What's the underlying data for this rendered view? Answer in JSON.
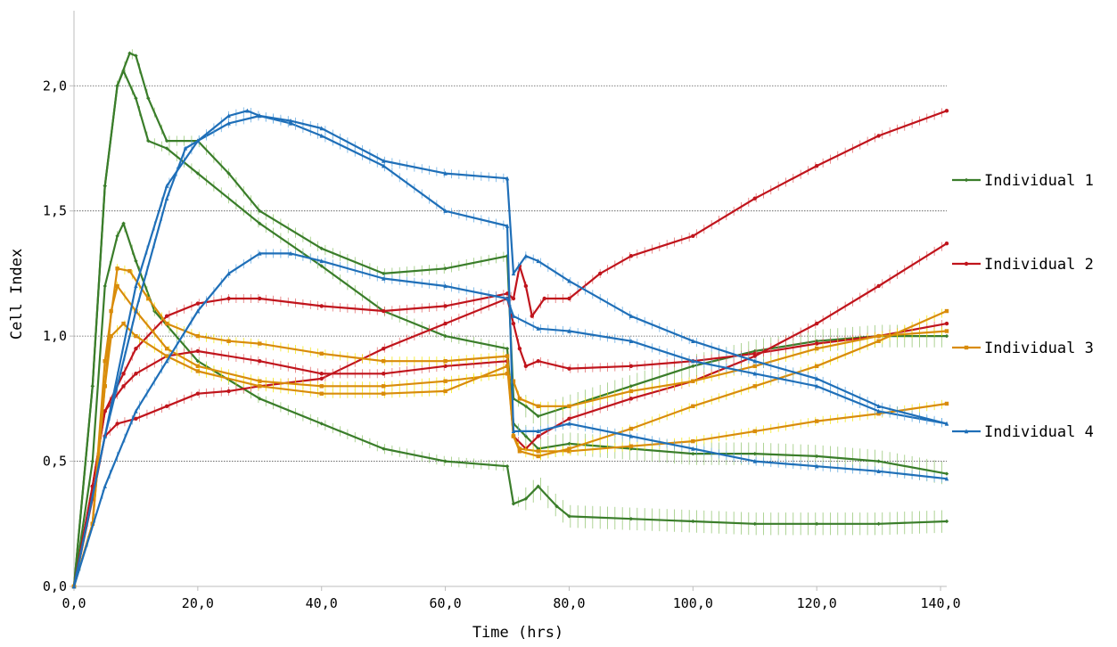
{
  "chart_data": {
    "type": "line",
    "xlabel": "Time (hrs)",
    "ylabel": "Cell Index",
    "xlim": [
      0,
      141
    ],
    "ylim": [
      0,
      2.3
    ],
    "x_ticks": [
      0,
      20,
      40,
      60,
      80,
      100,
      120,
      140
    ],
    "x_tick_labels": [
      "0,0",
      "20,0",
      "40,0",
      "60,0",
      "80,0",
      "100,0",
      "120,0",
      "140,0"
    ],
    "y_ticks": [
      0,
      0.5,
      1.0,
      1.5,
      2.0
    ],
    "y_tick_labels": [
      "0,0",
      "0,5",
      "1,0",
      "1,5",
      "2,0"
    ],
    "horizontal_gridlines": true,
    "legend_position": "right",
    "error_bars": true,
    "series": [
      {
        "name": "Individual 1",
        "group": "Individual 1",
        "color": "#3a7d2a",
        "error_color": "#8dc26a",
        "marker": "diamond",
        "points": [
          [
            0,
            0
          ],
          [
            3,
            0.5
          ],
          [
            5,
            1.2
          ],
          [
            7,
            1.4
          ],
          [
            8,
            1.45
          ],
          [
            10,
            1.3
          ],
          [
            13,
            1.1
          ],
          [
            20,
            0.9
          ],
          [
            30,
            0.75
          ],
          [
            40,
            0.65
          ],
          [
            50,
            0.55
          ],
          [
            60,
            0.5
          ],
          [
            70,
            0.48
          ],
          [
            71,
            0.33
          ],
          [
            73,
            0.35
          ],
          [
            75,
            0.4
          ],
          [
            78,
            0.32
          ],
          [
            80,
            0.28
          ],
          [
            90,
            0.27
          ],
          [
            100,
            0.26
          ],
          [
            110,
            0.25
          ],
          [
            120,
            0.25
          ],
          [
            130,
            0.25
          ],
          [
            141,
            0.26
          ]
        ]
      },
      {
        "name": "",
        "group": "Individual 1",
        "color": "#3a7d2a",
        "error_color": "#8dc26a",
        "marker": "diamond",
        "points": [
          [
            0,
            0
          ],
          [
            3,
            0.8
          ],
          [
            5,
            1.6
          ],
          [
            7,
            2.0
          ],
          [
            8,
            2.06
          ],
          [
            10,
            1.95
          ],
          [
            12,
            1.78
          ],
          [
            15,
            1.75
          ],
          [
            20,
            1.65
          ],
          [
            30,
            1.45
          ],
          [
            40,
            1.28
          ],
          [
            50,
            1.1
          ],
          [
            60,
            1.0
          ],
          [
            70,
            0.95
          ],
          [
            71,
            0.65
          ],
          [
            73,
            0.6
          ],
          [
            75,
            0.55
          ],
          [
            80,
            0.57
          ],
          [
            90,
            0.55
          ],
          [
            100,
            0.53
          ],
          [
            110,
            0.53
          ],
          [
            120,
            0.52
          ],
          [
            130,
            0.5
          ],
          [
            141,
            0.45
          ]
        ]
      },
      {
        "name": "",
        "group": "Individual 1",
        "color": "#3a7d2a",
        "error_color": "#8dc26a",
        "marker": "diamond",
        "points": [
          [
            0,
            0
          ],
          [
            3,
            0.8
          ],
          [
            5,
            1.6
          ],
          [
            7,
            2.0
          ],
          [
            9,
            2.13
          ],
          [
            10,
            2.12
          ],
          [
            12,
            1.95
          ],
          [
            15,
            1.78
          ],
          [
            20,
            1.78
          ],
          [
            25,
            1.65
          ],
          [
            30,
            1.5
          ],
          [
            40,
            1.35
          ],
          [
            50,
            1.25
          ],
          [
            60,
            1.27
          ],
          [
            70,
            1.32
          ],
          [
            71,
            0.75
          ],
          [
            73,
            0.72
          ],
          [
            75,
            0.68
          ],
          [
            80,
            0.72
          ],
          [
            90,
            0.8
          ],
          [
            100,
            0.88
          ],
          [
            110,
            0.94
          ],
          [
            120,
            0.98
          ],
          [
            130,
            1.0
          ],
          [
            141,
            1.0
          ]
        ]
      },
      {
        "name": "Individual 2",
        "group": "Individual 2",
        "color": "#c0141c",
        "error_color": "#e06060",
        "marker": "circle",
        "points": [
          [
            0,
            0
          ],
          [
            3,
            0.35
          ],
          [
            5,
            0.6
          ],
          [
            7,
            0.65
          ],
          [
            10,
            0.67
          ],
          [
            15,
            0.72
          ],
          [
            20,
            0.77
          ],
          [
            25,
            0.78
          ],
          [
            30,
            0.8
          ],
          [
            40,
            0.83
          ],
          [
            50,
            0.95
          ],
          [
            60,
            1.05
          ],
          [
            70,
            1.15
          ],
          [
            71,
            1.05
          ],
          [
            72,
            0.95
          ],
          [
            73,
            0.88
          ],
          [
            75,
            0.9
          ],
          [
            80,
            0.87
          ],
          [
            90,
            0.88
          ],
          [
            100,
            0.9
          ],
          [
            110,
            0.93
          ],
          [
            120,
            0.97
          ],
          [
            130,
            1.0
          ],
          [
            141,
            1.05
          ]
        ]
      },
      {
        "name": "",
        "group": "Individual 2",
        "color": "#c0141c",
        "error_color": "#e06060",
        "marker": "circle",
        "points": [
          [
            0,
            0
          ],
          [
            3,
            0.4
          ],
          [
            5,
            0.7
          ],
          [
            8,
            0.8
          ],
          [
            10,
            0.85
          ],
          [
            15,
            0.92
          ],
          [
            20,
            0.94
          ],
          [
            30,
            0.9
          ],
          [
            40,
            0.85
          ],
          [
            50,
            0.85
          ],
          [
            60,
            0.88
          ],
          [
            70,
            0.9
          ],
          [
            71,
            0.6
          ],
          [
            73,
            0.55
          ],
          [
            75,
            0.6
          ],
          [
            80,
            0.67
          ],
          [
            90,
            0.75
          ],
          [
            100,
            0.82
          ],
          [
            110,
            0.92
          ],
          [
            120,
            1.05
          ],
          [
            130,
            1.2
          ],
          [
            141,
            1.37
          ]
        ]
      },
      {
        "name": "",
        "group": "Individual 2",
        "color": "#c0141c",
        "error_color": "#e06060",
        "marker": "circle",
        "points": [
          [
            0,
            0
          ],
          [
            3,
            0.4
          ],
          [
            5,
            0.7
          ],
          [
            8,
            0.85
          ],
          [
            10,
            0.95
          ],
          [
            15,
            1.08
          ],
          [
            20,
            1.13
          ],
          [
            25,
            1.15
          ],
          [
            30,
            1.15
          ],
          [
            40,
            1.12
          ],
          [
            50,
            1.1
          ],
          [
            60,
            1.12
          ],
          [
            70,
            1.17
          ],
          [
            71,
            1.15
          ],
          [
            72,
            1.28
          ],
          [
            73,
            1.2
          ],
          [
            74,
            1.08
          ],
          [
            76,
            1.15
          ],
          [
            80,
            1.15
          ],
          [
            85,
            1.25
          ],
          [
            90,
            1.32
          ],
          [
            100,
            1.4
          ],
          [
            110,
            1.55
          ],
          [
            120,
            1.68
          ],
          [
            130,
            1.8
          ],
          [
            141,
            1.9
          ]
        ]
      },
      {
        "name": "Individual 3",
        "group": "Individual 3",
        "color": "#d98c0a",
        "error_color": "#f2e600",
        "marker": "square",
        "points": [
          [
            0,
            0
          ],
          [
            3,
            0.25
          ],
          [
            5,
            0.8
          ],
          [
            6,
            1.1
          ],
          [
            7,
            1.2
          ],
          [
            10,
            1.1
          ],
          [
            15,
            0.95
          ],
          [
            20,
            0.88
          ],
          [
            30,
            0.82
          ],
          [
            40,
            0.8
          ],
          [
            50,
            0.8
          ],
          [
            60,
            0.82
          ],
          [
            70,
            0.85
          ],
          [
            71,
            0.82
          ],
          [
            72,
            0.75
          ],
          [
            75,
            0.72
          ],
          [
            80,
            0.72
          ],
          [
            90,
            0.78
          ],
          [
            100,
            0.82
          ],
          [
            110,
            0.88
          ],
          [
            120,
            0.95
          ],
          [
            130,
            1.0
          ],
          [
            141,
            1.02
          ]
        ]
      },
      {
        "name": "",
        "group": "Individual 3",
        "color": "#d98c0a",
        "error_color": "#f2e600",
        "marker": "square",
        "points": [
          [
            0,
            0
          ],
          [
            3,
            0.25
          ],
          [
            5,
            0.9
          ],
          [
            7,
            1.27
          ],
          [
            9,
            1.26
          ],
          [
            12,
            1.15
          ],
          [
            15,
            1.05
          ],
          [
            20,
            1.0
          ],
          [
            25,
            0.98
          ],
          [
            30,
            0.97
          ],
          [
            40,
            0.93
          ],
          [
            50,
            0.9
          ],
          [
            60,
            0.9
          ],
          [
            70,
            0.92
          ],
          [
            71,
            0.6
          ],
          [
            72,
            0.55
          ],
          [
            75,
            0.54
          ],
          [
            80,
            0.54
          ],
          [
            90,
            0.56
          ],
          [
            100,
            0.58
          ],
          [
            110,
            0.62
          ],
          [
            120,
            0.66
          ],
          [
            130,
            0.69
          ],
          [
            141,
            0.73
          ]
        ]
      },
      {
        "name": "",
        "group": "Individual 3",
        "color": "#d98c0a",
        "error_color": "#f2e600",
        "marker": "square",
        "points": [
          [
            0,
            0
          ],
          [
            3,
            0.25
          ],
          [
            5,
            0.8
          ],
          [
            6,
            1.0
          ],
          [
            8,
            1.05
          ],
          [
            10,
            1.0
          ],
          [
            15,
            0.92
          ],
          [
            20,
            0.86
          ],
          [
            30,
            0.8
          ],
          [
            40,
            0.77
          ],
          [
            50,
            0.77
          ],
          [
            60,
            0.78
          ],
          [
            70,
            0.88
          ],
          [
            71,
            0.6
          ],
          [
            72,
            0.54
          ],
          [
            75,
            0.52
          ],
          [
            80,
            0.55
          ],
          [
            90,
            0.63
          ],
          [
            100,
            0.72
          ],
          [
            110,
            0.8
          ],
          [
            120,
            0.88
          ],
          [
            130,
            0.98
          ],
          [
            141,
            1.1
          ]
        ]
      },
      {
        "name": "Individual 4",
        "group": "Individual 4",
        "color": "#1f6fb8",
        "error_color": "#5aa5e0",
        "marker": "triangle",
        "points": [
          [
            0,
            0
          ],
          [
            5,
            0.4
          ],
          [
            10,
            0.7
          ],
          [
            15,
            0.9
          ],
          [
            20,
            1.1
          ],
          [
            25,
            1.25
          ],
          [
            30,
            1.33
          ],
          [
            35,
            1.33
          ],
          [
            40,
            1.3
          ],
          [
            50,
            1.23
          ],
          [
            60,
            1.2
          ],
          [
            70,
            1.15
          ],
          [
            71,
            1.08
          ],
          [
            75,
            1.03
          ],
          [
            80,
            1.02
          ],
          [
            90,
            0.98
          ],
          [
            100,
            0.9
          ],
          [
            110,
            0.85
          ],
          [
            120,
            0.8
          ],
          [
            130,
            0.7
          ],
          [
            141,
            0.65
          ]
        ]
      },
      {
        "name": "",
        "group": "Individual 4",
        "color": "#1f6fb8",
        "error_color": "#5aa5e0",
        "marker": "triangle",
        "points": [
          [
            0,
            0
          ],
          [
            5,
            0.6
          ],
          [
            10,
            1.1
          ],
          [
            15,
            1.55
          ],
          [
            18,
            1.75
          ],
          [
            20,
            1.78
          ],
          [
            25,
            1.85
          ],
          [
            30,
            1.88
          ],
          [
            35,
            1.85
          ],
          [
            40,
            1.8
          ],
          [
            50,
            1.68
          ],
          [
            60,
            1.5
          ],
          [
            70,
            1.44
          ],
          [
            71,
            0.62
          ],
          [
            75,
            0.62
          ],
          [
            80,
            0.65
          ],
          [
            90,
            0.6
          ],
          [
            100,
            0.55
          ],
          [
            110,
            0.5
          ],
          [
            120,
            0.48
          ],
          [
            130,
            0.46
          ],
          [
            141,
            0.43
          ]
        ]
      },
      {
        "name": "",
        "group": "Individual 4",
        "color": "#1f6fb8",
        "error_color": "#5aa5e0",
        "marker": "triangle",
        "points": [
          [
            0,
            0
          ],
          [
            5,
            0.6
          ],
          [
            10,
            1.2
          ],
          [
            15,
            1.6
          ],
          [
            20,
            1.78
          ],
          [
            25,
            1.88
          ],
          [
            28,
            1.9
          ],
          [
            30,
            1.88
          ],
          [
            35,
            1.86
          ],
          [
            40,
            1.83
          ],
          [
            50,
            1.7
          ],
          [
            60,
            1.65
          ],
          [
            70,
            1.63
          ],
          [
            71,
            1.25
          ],
          [
            73,
            1.32
          ],
          [
            75,
            1.3
          ],
          [
            80,
            1.22
          ],
          [
            90,
            1.08
          ],
          [
            100,
            0.98
          ],
          [
            110,
            0.9
          ],
          [
            120,
            0.83
          ],
          [
            130,
            0.72
          ],
          [
            141,
            0.65
          ]
        ]
      }
    ]
  }
}
